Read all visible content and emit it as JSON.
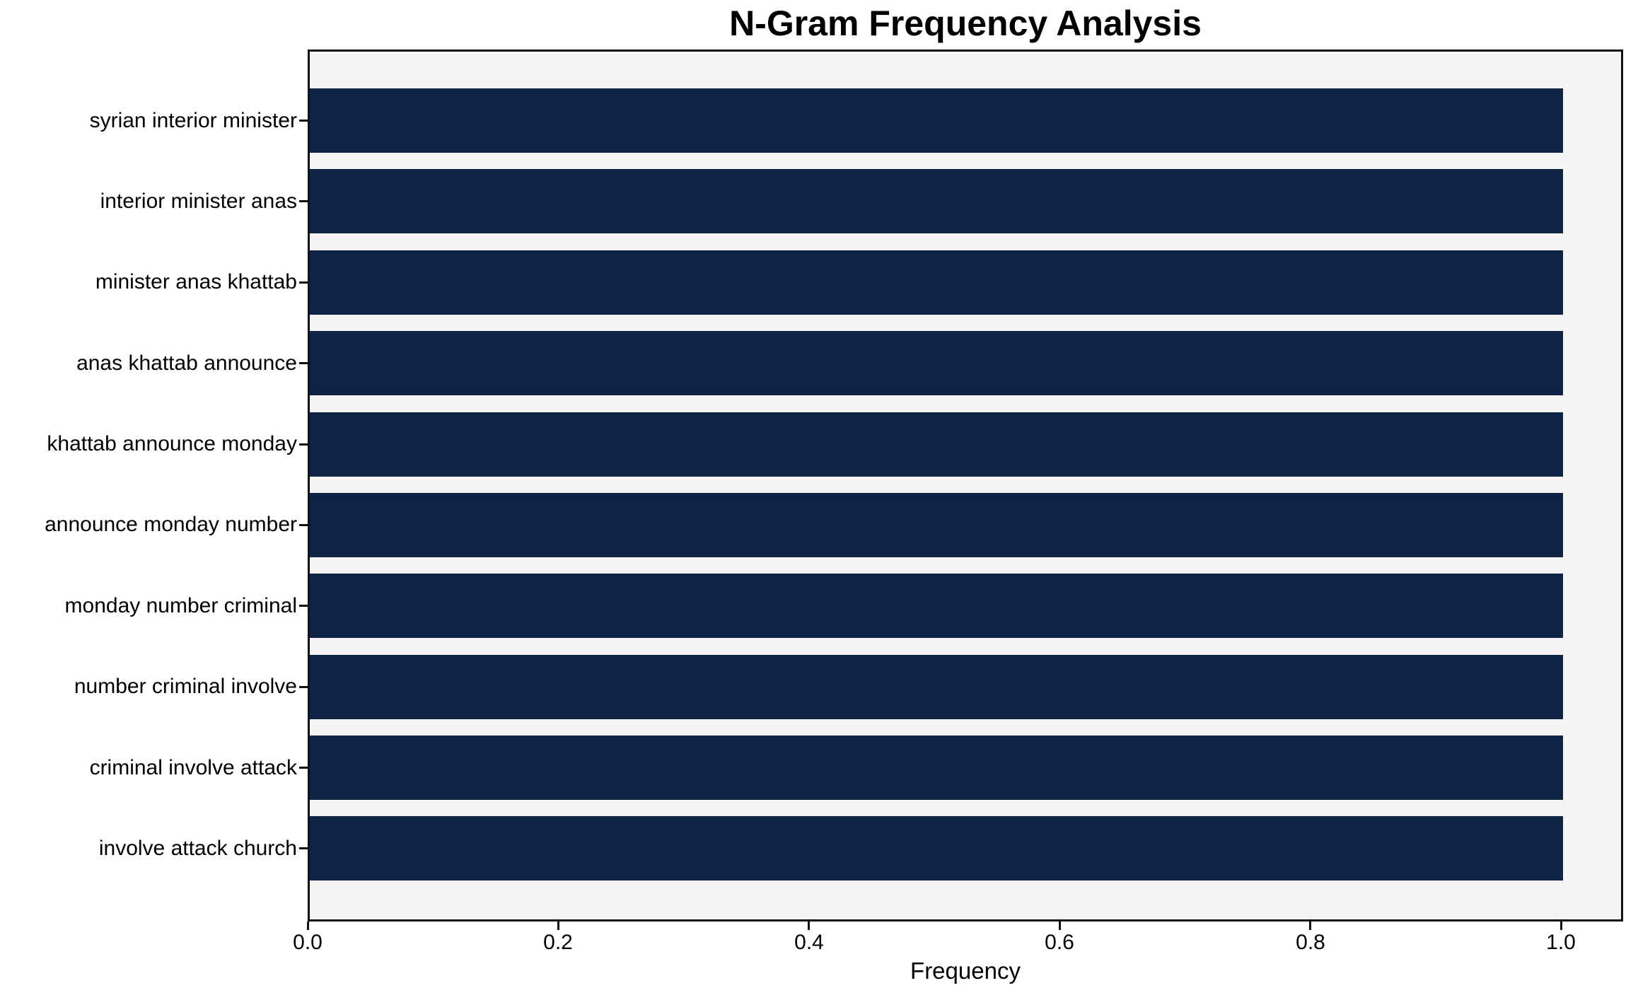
{
  "chart_data": {
    "type": "bar",
    "orientation": "horizontal",
    "title": "N-Gram Frequency Analysis",
    "xlabel": "Frequency",
    "ylabel": "",
    "categories": [
      "syrian interior minister",
      "interior minister anas",
      "minister anas khattab",
      "anas khattab announce",
      "khattab announce monday",
      "announce monday number",
      "monday number criminal",
      "number criminal involve",
      "criminal involve attack",
      "involve attack church"
    ],
    "values": [
      1.0,
      1.0,
      1.0,
      1.0,
      1.0,
      1.0,
      1.0,
      1.0,
      1.0,
      1.0
    ],
    "xlim": [
      0,
      1.05
    ],
    "xticks": [
      0.0,
      0.2,
      0.4,
      0.6,
      0.8,
      1.0
    ],
    "xtick_labels": [
      "0.0",
      "0.2",
      "0.4",
      "0.6",
      "0.8",
      "1.0"
    ],
    "grid": false,
    "legend": null,
    "bar_color": "#0f2344",
    "plot_background": "#f5f5f6",
    "figure_background": "#ffffff",
    "spine_color": "#111111",
    "text_color": "#000000"
  }
}
